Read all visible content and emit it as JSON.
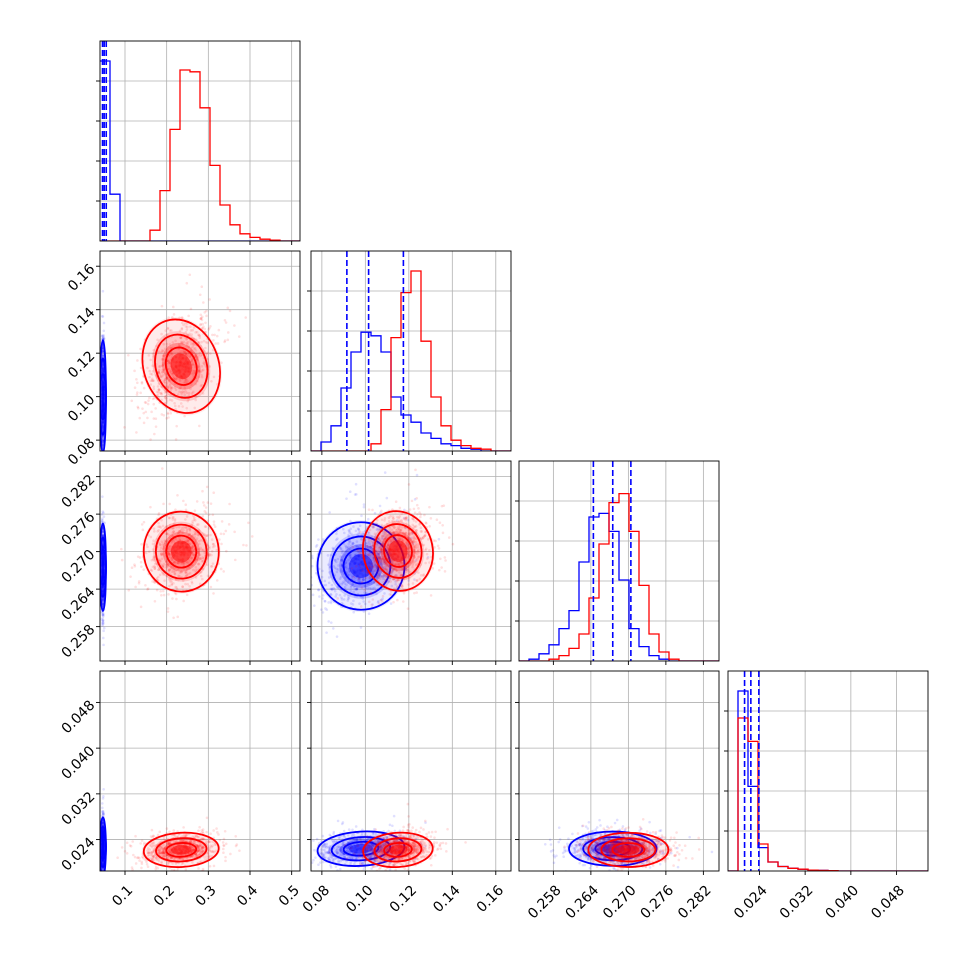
{
  "chart_data": {
    "type": "corner",
    "series_colors": {
      "blue": "#0000ff",
      "red": "#ff0000"
    },
    "parameters": [
      {
        "range": [
          0.04,
          0.52
        ],
        "ticks": [
          "0.1",
          "0.2",
          "0.3",
          "0.4",
          "0.5"
        ],
        "tick_values": [
          0.1,
          0.2,
          0.3,
          0.4,
          0.5
        ],
        "quantiles_blue": [
          0.046,
          0.05,
          0.055
        ],
        "blue_hist": [
          1.0,
          0.26,
          0.0,
          0.0,
          0.0,
          0.0,
          0.0,
          0.0,
          0.0,
          0.0,
          0.0,
          0.0,
          0.0,
          0.0,
          0.0,
          0.0,
          0.0,
          0.0,
          0.0,
          0.0
        ],
        "red_hist": [
          0.0,
          0.0,
          0.0,
          0.0,
          0.0,
          0.06,
          0.28,
          0.62,
          0.95,
          0.94,
          0.74,
          0.42,
          0.2,
          0.09,
          0.04,
          0.02,
          0.01,
          0.005,
          0.0,
          0.0
        ]
      },
      {
        "range": [
          0.075,
          0.167
        ],
        "ticks": [
          "0.08",
          "0.10",
          "0.12",
          "0.14",
          "0.16"
        ],
        "tick_values": [
          0.08,
          0.1,
          0.12,
          0.14,
          0.16
        ],
        "quantiles_blue": [
          0.0915,
          0.1015,
          0.1175
        ],
        "blue_hist": [
          0.0,
          0.05,
          0.14,
          0.35,
          0.55,
          0.66,
          0.64,
          0.55,
          0.3,
          0.2,
          0.16,
          0.1,
          0.07,
          0.04,
          0.03,
          0.015,
          0.01,
          0.0,
          0.0,
          0.0
        ],
        "red_hist": [
          0.0,
          0.0,
          0.0,
          0.0,
          0.0,
          0.0,
          0.04,
          0.23,
          0.63,
          0.88,
          1.0,
          0.61,
          0.3,
          0.14,
          0.06,
          0.03,
          0.015,
          0.01,
          0.0,
          0.0
        ]
      },
      {
        "range": [
          0.2525,
          0.2845
        ],
        "ticks": [
          "0.258",
          "0.264",
          "0.270",
          "0.276",
          "0.282"
        ],
        "tick_values": [
          0.258,
          0.264,
          0.27,
          0.276,
          0.282
        ],
        "quantiles_blue": [
          0.2644,
          0.2675,
          0.2704
        ],
        "blue_hist": [
          0.0,
          0.01,
          0.04,
          0.09,
          0.18,
          0.28,
          0.55,
          0.8,
          0.82,
          0.72,
          0.45,
          0.18,
          0.08,
          0.03,
          0.01,
          0.0,
          0.0,
          0.0,
          0.0,
          0.0
        ],
        "red_hist": [
          0.0,
          0.0,
          0.0,
          0.01,
          0.03,
          0.07,
          0.15,
          0.35,
          0.65,
          0.88,
          0.93,
          0.72,
          0.42,
          0.15,
          0.05,
          0.01,
          0.0,
          0.0,
          0.0,
          0.0
        ]
      },
      {
        "range": [
          0.0185,
          0.0535
        ],
        "ticks": [
          "0.024",
          "0.032",
          "0.040",
          "0.048"
        ],
        "tick_values": [
          0.024,
          0.032,
          0.04,
          0.048
        ],
        "quantiles_blue": [
          0.0214,
          0.0225,
          0.0239
        ],
        "blue_hist": [
          0.0,
          1.0,
          0.47,
          0.13,
          0.05,
          0.025,
          0.015,
          0.01,
          0.005,
          0.003,
          0.002,
          0.0,
          0.0,
          0.0,
          0.0,
          0.0,
          0.0,
          0.0,
          0.0,
          0.0
        ],
        "red_hist": [
          0.0,
          0.85,
          0.72,
          0.15,
          0.05,
          0.025,
          0.015,
          0.01,
          0.005,
          0.003,
          0.002,
          0.0,
          0.0,
          0.0,
          0.0,
          0.0,
          0.0,
          0.0,
          0.0,
          0.0
        ]
      }
    ],
    "blobs": {
      "blue": [
        {
          "mean": [
            0.047,
            0.1
          ],
          "sd": [
            0.0015,
            0.013
          ],
          "rho": 0.0
        },
        {
          "mean": [
            0.047,
            0.2675
          ],
          "sd": [
            0.0015,
            0.0035
          ],
          "rho": 0.0
        },
        {
          "mean": [
            0.047,
            0.0227
          ],
          "sd": [
            0.0015,
            0.0026
          ],
          "rho": 0.0
        },
        {
          "mean": [
            0.098,
            0.2677
          ],
          "sd": [
            0.01,
            0.0035
          ],
          "rho": 0.35
        },
        {
          "mean": [
            0.098,
            0.0224
          ],
          "sd": [
            0.01,
            0.0015
          ],
          "rho": 0.25
        },
        {
          "mean": [
            0.2675,
            0.0224
          ],
          "sd": [
            0.0035,
            0.0015
          ],
          "rho": 0.0
        }
      ],
      "red": [
        {
          "mean": [
            0.235,
            0.114
          ],
          "sd": [
            0.045,
            0.011
          ],
          "rho": 0.5
        },
        {
          "mean": [
            0.235,
            0.27
          ],
          "sd": [
            0.045,
            0.0032
          ],
          "rho": 0.15
        },
        {
          "mean": [
            0.235,
            0.0222
          ],
          "sd": [
            0.045,
            0.0015
          ],
          "rho": 0.2
        },
        {
          "mean": [
            0.115,
            0.2701
          ],
          "sd": [
            0.008,
            0.0032
          ],
          "rho": 0.3
        },
        {
          "mean": [
            0.115,
            0.0222
          ],
          "sd": [
            0.008,
            0.0015
          ],
          "rho": 0.2
        },
        {
          "mean": [
            0.27,
            0.0222
          ],
          "sd": [
            0.0032,
            0.0015
          ],
          "rho": 0.0
        }
      ]
    }
  }
}
